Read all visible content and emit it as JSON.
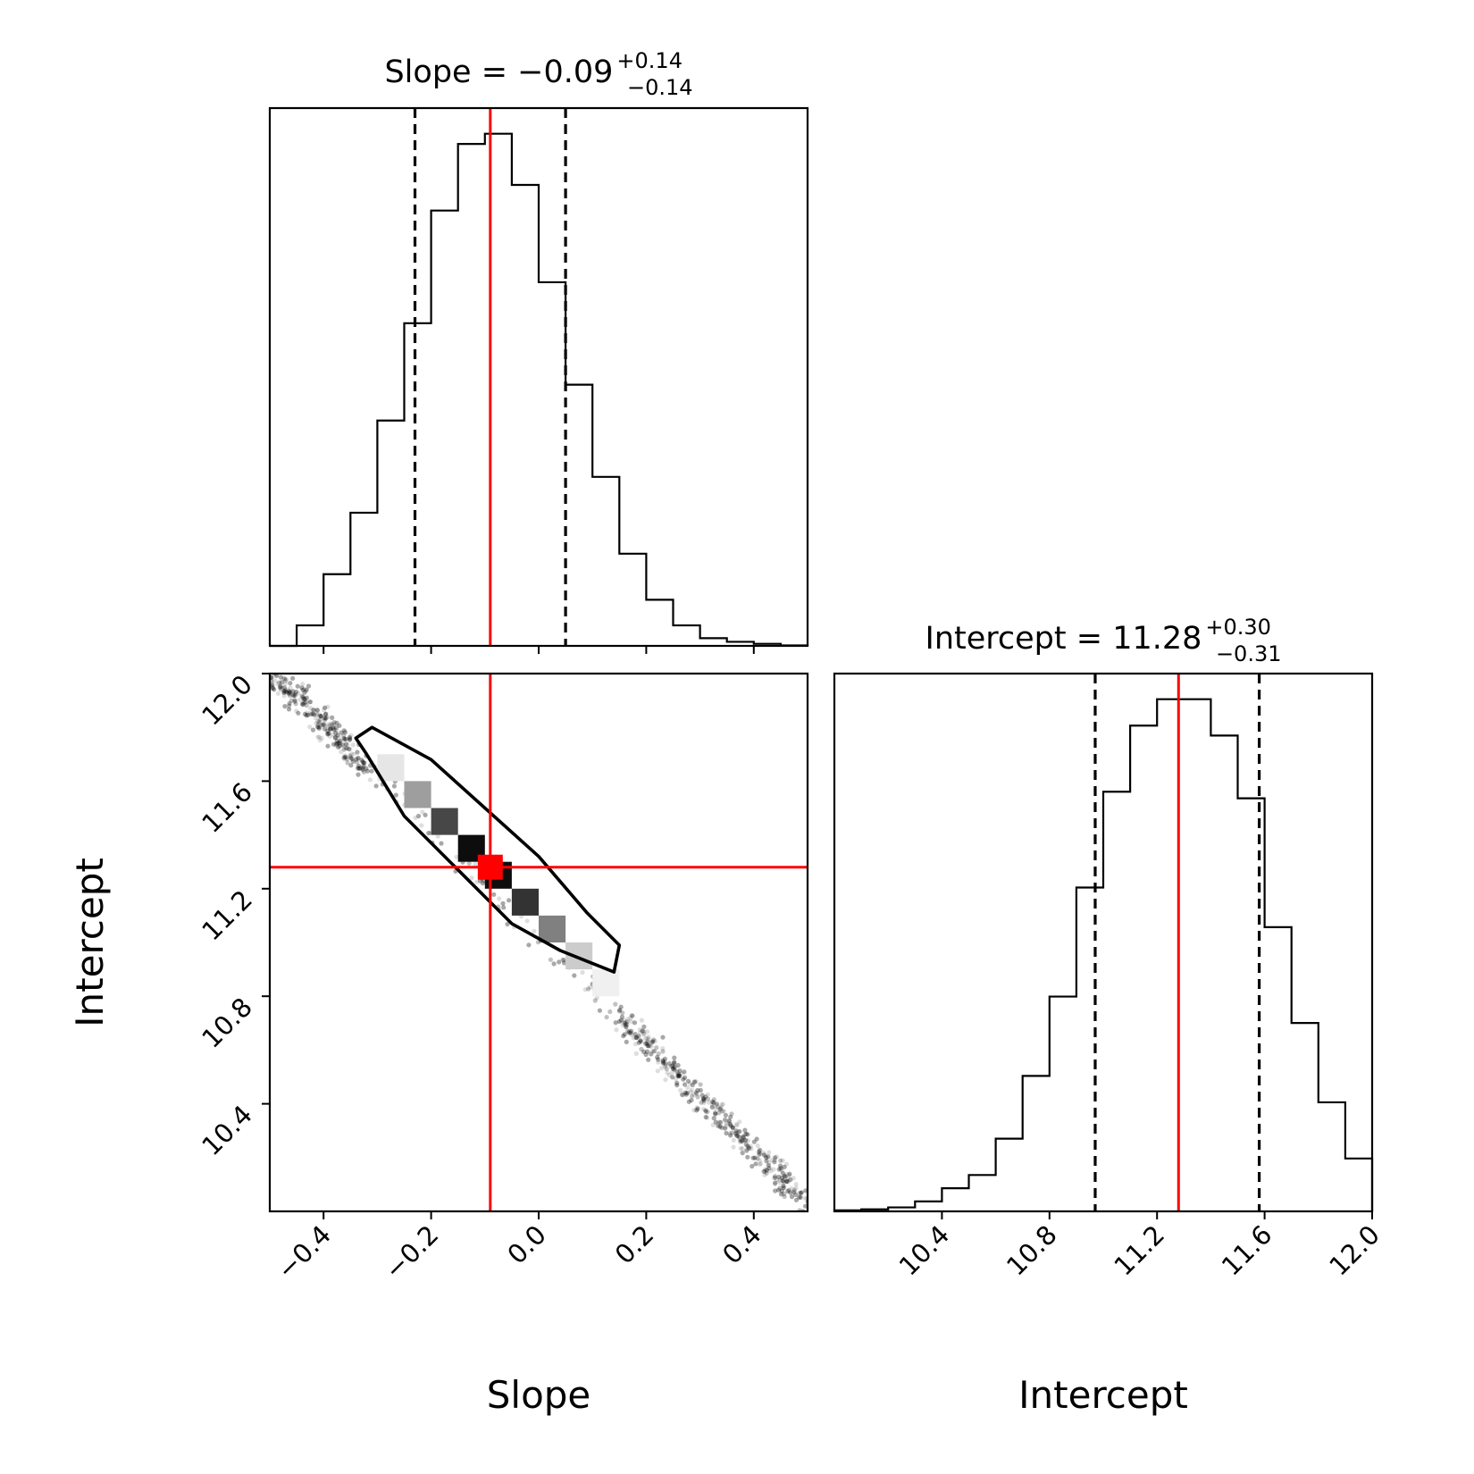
{
  "chart_data": {
    "type": "corner",
    "truth_color": "#ff0000",
    "quantile_line_style": "dashed",
    "parameters": [
      {
        "name": "Slope",
        "median": -0.09,
        "plus": "0.14",
        "minus": "0.14",
        "q16": -0.23,
        "q84": 0.05,
        "truth": -0.09
      },
      {
        "name": "Intercept",
        "median": 11.28,
        "plus": "0.30",
        "minus": "0.31",
        "q16": 10.97,
        "q84": 11.58,
        "truth": 11.28
      }
    ],
    "titles": {
      "slope": {
        "lhs": "Slope = ",
        "value": "−0.09",
        "plus": "+0.14",
        "minus": "−0.14"
      },
      "intercept": {
        "lhs": "Intercept = ",
        "value": "11.28",
        "plus": "+0.30",
        "minus": "−0.31"
      }
    },
    "slope_histogram": {
      "xlim": [
        -0.5,
        0.5
      ],
      "bin_edges": [
        -0.5,
        -0.45,
        -0.4,
        -0.35,
        -0.3,
        -0.25,
        -0.2,
        -0.15,
        -0.1,
        -0.05,
        0.0,
        0.05,
        0.1,
        0.15,
        0.2,
        0.25,
        0.3,
        0.35,
        0.4,
        0.45,
        0.5
      ],
      "counts": [
        0.0,
        0.04,
        0.14,
        0.26,
        0.44,
        0.63,
        0.85,
        0.98,
        1.0,
        0.9,
        0.71,
        0.51,
        0.33,
        0.18,
        0.09,
        0.04,
        0.015,
        0.008,
        0.004,
        0.001
      ]
    },
    "intercept_histogram": {
      "xlim": [
        10.0,
        12.0
      ],
      "bin_edges": [
        10.0,
        10.1,
        10.2,
        10.3,
        10.4,
        10.5,
        10.6,
        10.7,
        10.8,
        10.9,
        11.0,
        11.1,
        11.2,
        11.3,
        11.4,
        11.5,
        11.6,
        11.7,
        11.8,
        11.9,
        12.0
      ],
      "counts": [
        0.003,
        0.006,
        0.012,
        0.03,
        0.07,
        0.11,
        0.22,
        0.41,
        0.65,
        0.98,
        1.27,
        1.47,
        1.55,
        1.55,
        1.44,
        1.25,
        0.86,
        0.57,
        0.33,
        0.16
      ]
    },
    "joint": {
      "xlim": [
        -0.5,
        0.5
      ],
      "ylim": [
        10.0,
        12.0
      ],
      "cells": [
        {
          "x": -0.275,
          "y": 11.65,
          "shade": 0.1
        },
        {
          "x": -0.225,
          "y": 11.55,
          "shade": 0.38
        },
        {
          "x": -0.175,
          "y": 11.45,
          "shade": 0.72
        },
        {
          "x": -0.125,
          "y": 11.35,
          "shade": 0.95
        },
        {
          "x": -0.075,
          "y": 11.25,
          "shade": 0.95
        },
        {
          "x": -0.025,
          "y": 11.15,
          "shade": 0.8
        },
        {
          "x": 0.025,
          "y": 11.05,
          "shade": 0.5
        },
        {
          "x": 0.075,
          "y": 10.95,
          "shade": 0.2
        },
        {
          "x": 0.125,
          "y": 10.85,
          "shade": 0.06
        }
      ],
      "contour": [
        [
          -0.34,
          11.76
        ],
        [
          -0.31,
          11.8
        ],
        [
          -0.2,
          11.68
        ],
        [
          -0.1,
          11.5
        ],
        [
          0.0,
          11.32
        ],
        [
          0.09,
          11.11
        ],
        [
          0.15,
          10.99
        ],
        [
          0.14,
          10.89
        ],
        [
          0.04,
          10.97
        ],
        [
          -0.05,
          11.07
        ],
        [
          -0.15,
          11.27
        ],
        [
          -0.25,
          11.47
        ],
        [
          -0.32,
          11.7
        ]
      ],
      "scatter_band": {
        "x_start": -0.5,
        "x_end": 0.5,
        "intercept_at_zero": 11.02,
        "slope_dy_dx": -1.98,
        "spread": 0.035
      }
    },
    "axes": {
      "slope_ticks": [
        -0.4,
        -0.2,
        0.0,
        0.2,
        0.4
      ],
      "slope_tick_labels": [
        "−0.4",
        "−0.2",
        "0.0",
        "0.2",
        "0.4"
      ],
      "intercept_ticks": [
        10.4,
        10.8,
        11.2,
        11.6,
        12.0
      ],
      "intercept_tick_labels": [
        "10.4",
        "10.8",
        "11.2",
        "11.6",
        "12.0"
      ],
      "xlabel_left": "Slope",
      "xlabel_right": "Intercept",
      "ylabel": "Intercept"
    }
  }
}
